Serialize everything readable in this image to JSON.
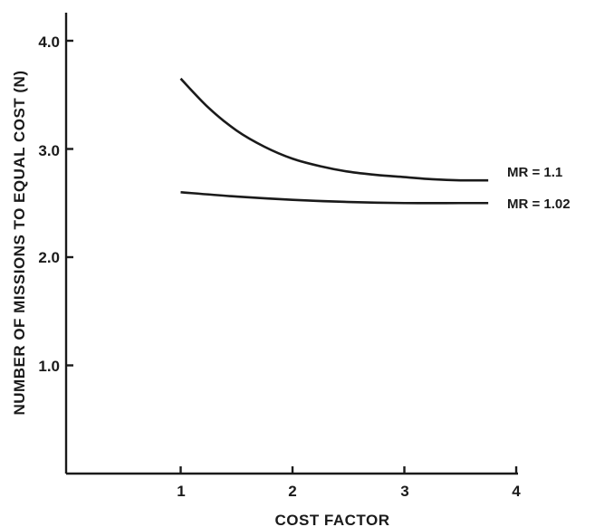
{
  "chart_data": {
    "type": "line",
    "title": "",
    "xlabel": "COST FACTOR",
    "ylabel": "NUMBER OF MISSIONS TO EQUAL COST (N)",
    "xlim": [
      0,
      4
    ],
    "ylim": [
      0,
      4.0
    ],
    "x_ticks": [
      "1",
      "2",
      "3",
      "4"
    ],
    "y_ticks": [
      "1.0",
      "2.0",
      "3.0",
      "4.0"
    ],
    "grid": false,
    "legend": "none",
    "series": [
      {
        "name": "MR = 1.1",
        "x": [
          1.0,
          1.25,
          1.5,
          1.75,
          2.0,
          2.25,
          2.5,
          2.75,
          3.0,
          3.25,
          3.5,
          3.75
        ],
        "y": [
          3.65,
          3.38,
          3.17,
          3.02,
          2.91,
          2.84,
          2.79,
          2.76,
          2.74,
          2.72,
          2.71,
          2.71
        ]
      },
      {
        "name": "MR = 1.02",
        "x": [
          1.0,
          1.5,
          2.0,
          2.5,
          3.0,
          3.5,
          3.75
        ],
        "y": [
          2.6,
          2.56,
          2.53,
          2.51,
          2.5,
          2.5,
          2.5
        ]
      }
    ]
  }
}
